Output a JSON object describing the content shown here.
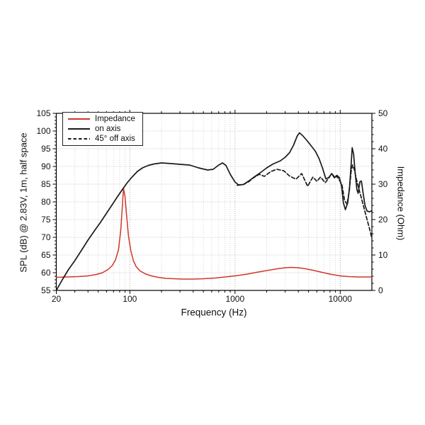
{
  "figure": {
    "xlabel": "Frequency (Hz)",
    "ylabel_left": "SPL (dB) @ 2.83V, 1m, half space",
    "ylabel_right": "Impedance (Ohm)",
    "legend": [
      {
        "label": "Impedance",
        "color": "#d2352b",
        "dash": "solid"
      },
      {
        "label": "on axis",
        "color": "#1a1a1a",
        "dash": "solid"
      },
      {
        "label": "45° off axis",
        "color": "#1a1a1a",
        "dash": "dashed"
      }
    ]
  },
  "chart_data": {
    "type": "line",
    "x_scale": "log",
    "x_range": [
      20,
      20000
    ],
    "x_major_ticks": [
      20,
      100,
      1000,
      10000
    ],
    "x_tick_labels": [
      "20",
      "100",
      "1000",
      "10000"
    ],
    "xlabel": "Frequency (Hz)",
    "y_left": {
      "label": "SPL (dB) @ 2.83V, 1m, half space",
      "range": [
        55,
        105
      ],
      "major_step": 5,
      "minor_step": 1,
      "tick_labels": [
        "55",
        "60",
        "65",
        "70",
        "75",
        "80",
        "85",
        "90",
        "95",
        "100",
        "105"
      ]
    },
    "y_right": {
      "label": "Impedance (Ohm)",
      "range": [
        0,
        50
      ],
      "major_step": 10,
      "minor_step": 2,
      "tick_labels": [
        "0",
        "10",
        "20",
        "30",
        "40",
        "50"
      ]
    },
    "grid": true,
    "legend_position": "top-left",
    "series": [
      {
        "name": "Impedance",
        "axis": "right",
        "unit": "Ohm",
        "color": "#d2352b",
        "style": "solid",
        "points": [
          [
            20,
            3.7
          ],
          [
            25,
            3.8
          ],
          [
            32,
            3.9
          ],
          [
            40,
            4.1
          ],
          [
            48,
            4.5
          ],
          [
            55,
            5.0
          ],
          [
            62,
            5.9
          ],
          [
            68,
            7.0
          ],
          [
            73,
            8.6
          ],
          [
            78,
            11.5
          ],
          [
            82,
            17.0
          ],
          [
            85,
            24.0
          ],
          [
            87,
            28.8
          ],
          [
            90,
            26.5
          ],
          [
            93,
            21.5
          ],
          [
            97,
            15.5
          ],
          [
            102,
            11.3
          ],
          [
            108,
            8.4
          ],
          [
            115,
            6.7
          ],
          [
            125,
            5.5
          ],
          [
            140,
            4.7
          ],
          [
            160,
            4.1
          ],
          [
            185,
            3.7
          ],
          [
            220,
            3.4
          ],
          [
            260,
            3.3
          ],
          [
            320,
            3.2
          ],
          [
            400,
            3.2
          ],
          [
            500,
            3.3
          ],
          [
            650,
            3.5
          ],
          [
            800,
            3.8
          ],
          [
            1000,
            4.1
          ],
          [
            1300,
            4.6
          ],
          [
            1600,
            5.1
          ],
          [
            2000,
            5.6
          ],
          [
            2500,
            6.1
          ],
          [
            3000,
            6.4
          ],
          [
            3400,
            6.5
          ],
          [
            4000,
            6.4
          ],
          [
            4700,
            6.1
          ],
          [
            5500,
            5.7
          ],
          [
            6500,
            5.2
          ],
          [
            8000,
            4.6
          ],
          [
            10000,
            4.1
          ],
          [
            12000,
            3.9
          ],
          [
            15000,
            3.8
          ],
          [
            20000,
            3.8
          ]
        ]
      },
      {
        "name": "on axis",
        "axis": "left",
        "unit": "dB",
        "color": "#1a1a1a",
        "style": "solid",
        "points": [
          [
            20,
            55.0
          ],
          [
            23,
            58.2
          ],
          [
            26,
            60.8
          ],
          [
            30,
            63.4
          ],
          [
            35,
            66.5
          ],
          [
            40,
            69.2
          ],
          [
            46,
            71.8
          ],
          [
            52,
            74.0
          ],
          [
            60,
            76.8
          ],
          [
            68,
            79.2
          ],
          [
            76,
            81.4
          ],
          [
            85,
            83.5
          ],
          [
            95,
            85.5
          ],
          [
            105,
            87.0
          ],
          [
            118,
            88.6
          ],
          [
            132,
            89.6
          ],
          [
            150,
            90.3
          ],
          [
            170,
            90.7
          ],
          [
            200,
            91.0
          ],
          [
            250,
            90.8
          ],
          [
            300,
            90.6
          ],
          [
            370,
            90.4
          ],
          [
            450,
            89.6
          ],
          [
            550,
            89.0
          ],
          [
            620,
            89.2
          ],
          [
            700,
            90.4
          ],
          [
            760,
            91.0
          ],
          [
            820,
            90.3
          ],
          [
            900,
            87.8
          ],
          [
            1000,
            85.6
          ],
          [
            1080,
            84.8
          ],
          [
            1200,
            84.9
          ],
          [
            1350,
            85.9
          ],
          [
            1500,
            86.9
          ],
          [
            1700,
            88.0
          ],
          [
            2000,
            89.6
          ],
          [
            2300,
            90.7
          ],
          [
            2700,
            91.6
          ],
          [
            3000,
            92.6
          ],
          [
            3300,
            93.9
          ],
          [
            3600,
            96.0
          ],
          [
            3900,
            98.6
          ],
          [
            4100,
            99.5
          ],
          [
            4400,
            98.7
          ],
          [
            4800,
            97.4
          ],
          [
            5300,
            95.8
          ],
          [
            5800,
            94.3
          ],
          [
            6300,
            92.2
          ],
          [
            6800,
            89.5
          ],
          [
            7300,
            86.5
          ],
          [
            7800,
            86.9
          ],
          [
            8300,
            88.0
          ],
          [
            8800,
            86.8
          ],
          [
            9300,
            87.5
          ],
          [
            9800,
            86.9
          ],
          [
            10300,
            84.5
          ],
          [
            10700,
            79.8
          ],
          [
            11200,
            77.8
          ],
          [
            11800,
            79.8
          ],
          [
            12300,
            84.5
          ],
          [
            12700,
            90.5
          ],
          [
            13000,
            95.3
          ],
          [
            13400,
            93.5
          ],
          [
            13900,
            88.0
          ],
          [
            14400,
            83.5
          ],
          [
            14800,
            82.4
          ],
          [
            15400,
            85.7
          ],
          [
            15900,
            85.9
          ],
          [
            16500,
            82.5
          ],
          [
            17200,
            79.0
          ],
          [
            18000,
            77.4
          ],
          [
            19000,
            77.2
          ],
          [
            20000,
            77.5
          ]
        ]
      },
      {
        "name": "45° off axis",
        "axis": "left",
        "unit": "dB",
        "color": "#1a1a1a",
        "style": "dashed",
        "points": [
          [
            1050,
            84.7
          ],
          [
            1200,
            84.9
          ],
          [
            1350,
            85.7
          ],
          [
            1500,
            86.8
          ],
          [
            1700,
            87.8
          ],
          [
            1900,
            87.2
          ],
          [
            2200,
            88.6
          ],
          [
            2500,
            89.2
          ],
          [
            2900,
            88.8
          ],
          [
            3300,
            87.3
          ],
          [
            3800,
            86.4
          ],
          [
            4300,
            88.0
          ],
          [
            4900,
            84.4
          ],
          [
            5500,
            87.0
          ],
          [
            6000,
            85.8
          ],
          [
            6500,
            87.0
          ],
          [
            7200,
            85.4
          ],
          [
            7800,
            86.8
          ],
          [
            8300,
            88.0
          ],
          [
            8900,
            86.9
          ],
          [
            9300,
            87.2
          ],
          [
            9800,
            86.2
          ],
          [
            10400,
            84.8
          ],
          [
            11000,
            80.5
          ],
          [
            11600,
            79.3
          ],
          [
            12200,
            83.0
          ],
          [
            12700,
            88.6
          ],
          [
            13100,
            90.4
          ],
          [
            13600,
            89.2
          ],
          [
            14200,
            86.6
          ],
          [
            15000,
            83.8
          ],
          [
            16000,
            80.8
          ],
          [
            17000,
            77.8
          ],
          [
            18000,
            75.0
          ],
          [
            19000,
            72.4
          ],
          [
            19800,
            70.2
          ]
        ]
      }
    ]
  }
}
